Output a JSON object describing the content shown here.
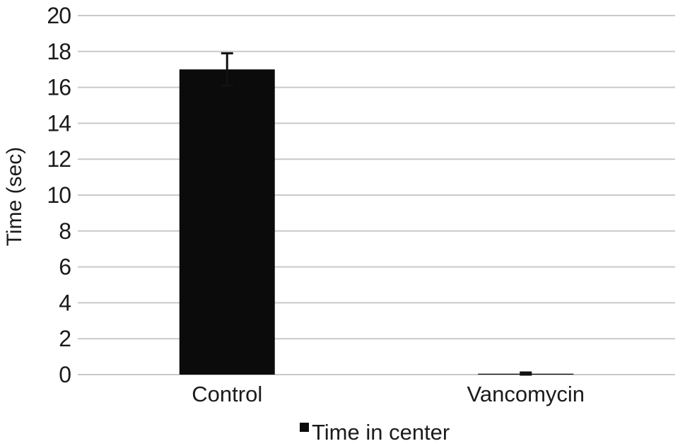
{
  "figure": {
    "background_color": "#ffffff",
    "text_color": "#1b1b1b",
    "gridline_color": "#c9c9c9",
    "bar_color": "#0b0b0b",
    "error_bar_color": "#111111"
  },
  "chart_data": {
    "type": "bar",
    "title": "",
    "xlabel": "",
    "ylabel": "Time (sec)",
    "categories": [
      "Control",
      "Vancomycin"
    ],
    "series": [
      {
        "name": "Time in center",
        "values": [
          17,
          0.05
        ],
        "errors": [
          0.9,
          0.07
        ]
      }
    ],
    "ylim": [
      0,
      20
    ],
    "ytick_step": 2,
    "yticks": [
      0,
      2,
      4,
      6,
      8,
      10,
      12,
      14,
      16,
      18,
      20
    ],
    "grid": "horizontal-only",
    "axis_lines": "none",
    "legend_position": "bottom-center",
    "legend_marker": "black-square"
  }
}
